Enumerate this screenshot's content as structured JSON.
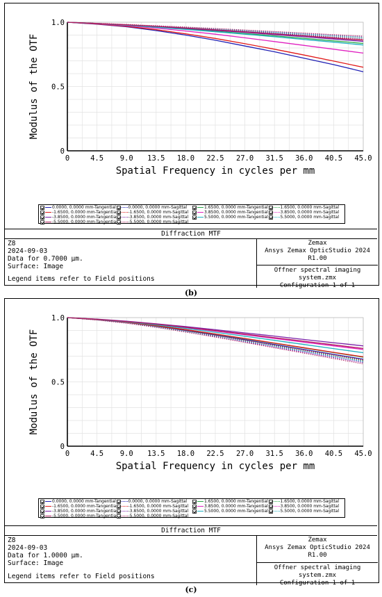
{
  "chart_data": [
    {
      "type": "line",
      "panel_caption": "(b)",
      "xlabel": "Spatial Frequency in cycles per mm",
      "ylabel": "Modulus of the OTF",
      "xlim": [
        0,
        45
      ],
      "ylim": [
        0,
        1
      ],
      "x_ticks": [
        "0",
        "4.5",
        "9.0",
        "13.5",
        "18.0",
        "22.5",
        "27.0",
        "31.5",
        "36.0",
        "40.5",
        "45.0"
      ],
      "y_ticks": [
        "0",
        "0.5",
        "1.0"
      ],
      "grid": true,
      "x": [
        0,
        4.5,
        9,
        13.5,
        18,
        22.5,
        27,
        31.5,
        36,
        40.5,
        45
      ],
      "series": [
        {
          "name": "0.0000, 0.0000 mm-Tangential",
          "color": "#1f1fb4",
          "dash": "solid",
          "values": [
            1.0,
            0.985,
            0.965,
            0.935,
            0.9,
            0.86,
            0.815,
            0.77,
            0.72,
            0.67,
            0.615
          ]
        },
        {
          "name": "0.0000, 0.0000 mm-Sagittal",
          "color": "#1f1fb4",
          "dash": "dotted",
          "values": [
            1.0,
            0.99,
            0.98,
            0.968,
            0.955,
            0.942,
            0.928,
            0.914,
            0.9,
            0.885,
            0.87
          ]
        },
        {
          "name": "1.6500, 0.0000 mm-Tangential",
          "color": "#2aa84a",
          "dash": "solid",
          "values": [
            1.0,
            0.99,
            0.978,
            0.963,
            0.947,
            0.93,
            0.912,
            0.894,
            0.875,
            0.855,
            0.835
          ]
        },
        {
          "name": "1.6500, 0.0000 mm-Sagittal",
          "color": "#2aa84a",
          "dash": "dotted",
          "values": [
            1.0,
            0.991,
            0.981,
            0.97,
            0.958,
            0.946,
            0.933,
            0.92,
            0.907,
            0.893,
            0.879
          ]
        },
        {
          "name": "-1.6500, 0.0000 mm-Tangential",
          "color": "#e01818",
          "dash": "solid",
          "values": [
            1.0,
            0.986,
            0.968,
            0.942,
            0.91,
            0.874,
            0.833,
            0.79,
            0.745,
            0.698,
            0.65
          ]
        },
        {
          "name": "-1.6500, 0.0000 mm-Sagittal",
          "color": "#e01818",
          "dash": "dotted",
          "values": [
            1.0,
            0.99,
            0.979,
            0.967,
            0.954,
            0.94,
            0.926,
            0.911,
            0.896,
            0.881,
            0.866
          ]
        },
        {
          "name": "3.8500, 0.0000 mm-Tangential",
          "color": "#e020c0",
          "dash": "solid",
          "values": [
            1.0,
            0.988,
            0.973,
            0.954,
            0.932,
            0.907,
            0.879,
            0.85,
            0.82,
            0.79,
            0.76
          ]
        },
        {
          "name": "3.8500, 0.0000 mm-Sagittal",
          "color": "#e020c0",
          "dash": "dotted",
          "values": [
            1.0,
            0.991,
            0.982,
            0.972,
            0.961,
            0.95,
            0.938,
            0.926,
            0.913,
            0.9,
            0.886
          ]
        },
        {
          "name": "-3.8500, 0.0000 mm-Tangential",
          "color": "#7a1fa8",
          "dash": "solid",
          "values": [
            1.0,
            0.99,
            0.979,
            0.966,
            0.952,
            0.937,
            0.921,
            0.904,
            0.887,
            0.869,
            0.851
          ]
        },
        {
          "name": "-3.8500, 0.0000 mm-Sagittal",
          "color": "#7a1fa8",
          "dash": "dotted",
          "values": [
            1.0,
            0.991,
            0.981,
            0.97,
            0.959,
            0.947,
            0.934,
            0.921,
            0.908,
            0.895,
            0.882
          ]
        },
        {
          "name": "5.5000, 0.0000 mm-Tangential",
          "color": "#20b0c0",
          "dash": "solid",
          "values": [
            1.0,
            0.989,
            0.976,
            0.961,
            0.944,
            0.926,
            0.907,
            0.887,
            0.866,
            0.845,
            0.823
          ]
        },
        {
          "name": "5.5000, 0.0000 mm-Sagittal",
          "color": "#20b0c0",
          "dash": "dotted",
          "values": [
            1.0,
            0.991,
            0.981,
            0.971,
            0.96,
            0.948,
            0.936,
            0.923,
            0.91,
            0.897,
            0.884
          ]
        },
        {
          "name": "-5.5000, 0.0000 mm-Tangential",
          "color": "#b01c5c",
          "dash": "solid",
          "values": [
            1.0,
            0.99,
            0.98,
            0.968,
            0.955,
            0.941,
            0.926,
            0.91,
            0.894,
            0.877,
            0.86
          ]
        },
        {
          "name": "-5.5000, 0.0000 mm-Sagittal",
          "color": "#b01c5c",
          "dash": "dotted",
          "values": [
            1.0,
            0.992,
            0.983,
            0.973,
            0.963,
            0.952,
            0.94,
            0.928,
            0.916,
            0.904,
            0.892
          ]
        }
      ],
      "legend_position": "bottom",
      "info": {
        "title": "Diffraction MTF",
        "lines": [
          "Z8",
          "2024-09-03",
          "Data for 0.7000 µm.",
          "Surface: Image"
        ],
        "note": "Legend items refer to Field positions",
        "right_top": [
          "Zemax",
          "Ansys Zemax OpticStudio 2024 R1.00"
        ],
        "right_bottom": [
          "Offner spectral imaging system.zmx",
          "Configuration 1 of 1"
        ]
      }
    },
    {
      "type": "line",
      "panel_caption": "(c)",
      "xlabel": "Spatial Frequency in cycles per mm",
      "ylabel": "Modulus of the OTF",
      "xlim": [
        0,
        45
      ],
      "ylim": [
        0,
        1
      ],
      "x_ticks": [
        "0",
        "4.5",
        "9.0",
        "13.5",
        "18.0",
        "22.5",
        "27.0",
        "31.5",
        "36.0",
        "40.5",
        "45.0"
      ],
      "y_ticks": [
        "0",
        "0.5",
        "1.0"
      ],
      "grid": true,
      "x": [
        0,
        4.5,
        9,
        13.5,
        18,
        22.5,
        27,
        31.5,
        36,
        40.5,
        45
      ],
      "series": [
        {
          "name": "0.0000, 0.0000 mm-Tangential",
          "color": "#1f1fb4",
          "dash": "solid",
          "values": [
            1.0,
            0.984,
            0.962,
            0.933,
            0.9,
            0.865,
            0.828,
            0.79,
            0.752,
            0.714,
            0.676
          ]
        },
        {
          "name": "0.0000, 0.0000 mm-Sagittal",
          "color": "#1f1fb4",
          "dash": "dotted",
          "values": [
            1.0,
            0.983,
            0.96,
            0.93,
            0.895,
            0.858,
            0.819,
            0.779,
            0.739,
            0.699,
            0.66
          ]
        },
        {
          "name": "1.6500, 0.0000 mm-Tangential",
          "color": "#2aa84a",
          "dash": "solid",
          "values": [
            1.0,
            0.985,
            0.964,
            0.937,
            0.906,
            0.872,
            0.836,
            0.8,
            0.764,
            0.728,
            0.692
          ]
        },
        {
          "name": "1.6500, 0.0000 mm-Sagittal",
          "color": "#2aa84a",
          "dash": "dotted",
          "values": [
            1.0,
            0.983,
            0.96,
            0.931,
            0.897,
            0.861,
            0.823,
            0.784,
            0.745,
            0.706,
            0.667
          ]
        },
        {
          "name": "-1.6500, 0.0000 mm-Tangential",
          "color": "#e01818",
          "dash": "solid",
          "values": [
            1.0,
            0.985,
            0.964,
            0.938,
            0.907,
            0.873,
            0.838,
            0.802,
            0.766,
            0.73,
            0.695
          ]
        },
        {
          "name": "-1.6500, 0.0000 mm-Sagittal",
          "color": "#e01818",
          "dash": "dotted",
          "values": [
            1.0,
            0.983,
            0.961,
            0.932,
            0.898,
            0.862,
            0.824,
            0.786,
            0.747,
            0.709,
            0.671
          ]
        },
        {
          "name": "3.8500, 0.0000 mm-Tangential",
          "color": "#e020c0",
          "dash": "solid",
          "values": [
            1.0,
            0.987,
            0.969,
            0.947,
            0.922,
            0.895,
            0.867,
            0.838,
            0.809,
            0.78,
            0.752
          ]
        },
        {
          "name": "3.8500, 0.0000 mm-Sagittal",
          "color": "#e020c0",
          "dash": "dotted",
          "values": [
            1.0,
            0.982,
            0.958,
            0.927,
            0.891,
            0.853,
            0.813,
            0.772,
            0.731,
            0.69,
            0.65
          ]
        },
        {
          "name": "-3.8500, 0.0000 mm-Tangential",
          "color": "#7a1fa8",
          "dash": "solid",
          "values": [
            1.0,
            0.988,
            0.972,
            0.952,
            0.93,
            0.906,
            0.881,
            0.856,
            0.83,
            0.805,
            0.78
          ]
        },
        {
          "name": "-3.8500, 0.0000 mm-Sagittal",
          "color": "#7a1fa8",
          "dash": "dotted",
          "values": [
            1.0,
            0.982,
            0.957,
            0.926,
            0.89,
            0.852,
            0.812,
            0.771,
            0.73,
            0.689,
            0.649
          ]
        },
        {
          "name": "5.5000, 0.0000 mm-Tangential",
          "color": "#20b0c0",
          "dash": "solid",
          "values": [
            1.0,
            0.986,
            0.967,
            0.943,
            0.916,
            0.886,
            0.855,
            0.823,
            0.791,
            0.759,
            0.727
          ]
        },
        {
          "name": "5.5000, 0.0000 mm-Sagittal",
          "color": "#20b0c0",
          "dash": "dotted",
          "values": [
            1.0,
            0.982,
            0.958,
            0.928,
            0.893,
            0.856,
            0.817,
            0.777,
            0.737,
            0.697,
            0.658
          ]
        },
        {
          "name": "-5.5000, 0.0000 mm-Tangential",
          "color": "#b01c5c",
          "dash": "solid",
          "values": [
            1.0,
            0.987,
            0.97,
            0.949,
            0.925,
            0.899,
            0.872,
            0.844,
            0.816,
            0.788,
            0.76
          ]
        },
        {
          "name": "-5.5000, 0.0000 mm-Sagittal",
          "color": "#b01c5c",
          "dash": "dotted",
          "values": [
            1.0,
            0.981,
            0.956,
            0.924,
            0.887,
            0.848,
            0.807,
            0.765,
            0.723,
            0.681,
            0.64
          ]
        }
      ],
      "legend_position": "bottom",
      "info": {
        "title": "Diffraction MTF",
        "lines": [
          "Z8",
          "2024-09-03",
          "Data for 1.0000 µm.",
          "Surface: Image"
        ],
        "note": "Legend items refer to Field positions",
        "right_top": [
          "Zemax",
          "Ansys Zemax OpticStudio 2024 R1.00"
        ],
        "right_bottom": [
          "Offner spectral imaging system.zmx",
          "Configuration 1 of 1"
        ]
      }
    }
  ]
}
